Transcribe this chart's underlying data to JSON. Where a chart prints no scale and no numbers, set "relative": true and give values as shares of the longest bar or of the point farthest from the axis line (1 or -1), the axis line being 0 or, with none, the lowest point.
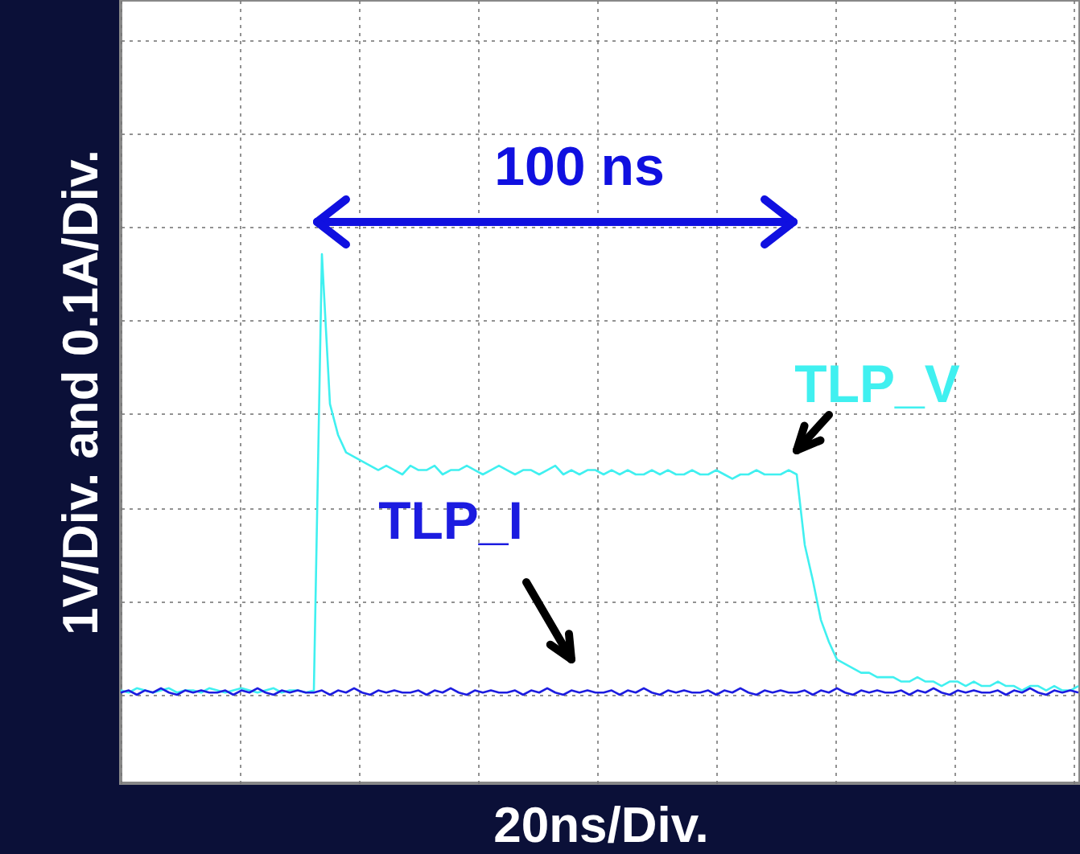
{
  "chart_data": {
    "type": "line",
    "relative": true,
    "grid": true,
    "xlabel": "20ns/Div.",
    "ylabel": "1V/Div. and 0.1A/Div.",
    "annotations": [
      "100 ns"
    ],
    "categories": [
      null,
      null,
      null,
      null,
      null,
      null,
      null,
      null,
      null,
      null,
      null,
      null,
      null,
      null,
      null,
      null,
      null,
      null,
      null,
      null,
      null,
      null,
      null,
      null,
      null,
      null,
      null,
      null,
      null,
      null,
      null,
      null,
      null,
      null,
      null,
      null,
      null,
      null,
      null,
      null,
      null,
      null,
      null,
      null,
      null,
      null,
      null,
      null,
      null,
      null,
      null,
      null,
      null,
      null,
      null,
      null,
      null,
      null,
      null,
      null,
      null,
      null,
      null,
      null,
      null,
      null,
      null,
      null,
      null,
      null,
      null,
      null,
      null,
      null,
      null,
      null,
      null,
      null,
      null,
      null,
      null,
      null,
      null,
      null,
      null,
      null,
      null,
      null,
      null,
      null,
      null,
      null,
      null,
      null,
      null,
      null,
      null,
      null,
      null,
      null,
      null,
      null,
      null,
      null,
      null,
      null,
      null,
      null,
      null,
      null,
      null,
      null,
      null,
      null,
      null,
      null,
      null,
      null,
      null,
      null
    ],
    "series": [
      {
        "name": "TLP_V",
        "color": "#40f0f0",
        "values": [
          0.01,
          0.005,
          0.015,
          0.01,
          0.005,
          0.01,
          0.015,
          0.005,
          0.01,
          0.01,
          0.005,
          0.015,
          0.01,
          0.005,
          0.01,
          0.015,
          0.01,
          0.005,
          0.01,
          0.015,
          0.005,
          0.01,
          0.01,
          0.005,
          0.01,
          1.0,
          0.66,
          0.59,
          0.55,
          0.54,
          0.53,
          0.52,
          0.51,
          0.52,
          0.51,
          0.5,
          0.52,
          0.51,
          0.51,
          0.52,
          0.5,
          0.51,
          0.51,
          0.52,
          0.51,
          0.5,
          0.51,
          0.52,
          0.51,
          0.5,
          0.51,
          0.51,
          0.5,
          0.51,
          0.52,
          0.5,
          0.51,
          0.5,
          0.51,
          0.51,
          0.5,
          0.51,
          0.5,
          0.51,
          0.5,
          0.5,
          0.51,
          0.5,
          0.51,
          0.5,
          0.5,
          0.51,
          0.5,
          0.5,
          0.51,
          0.5,
          0.49,
          0.5,
          0.5,
          0.51,
          0.5,
          0.5,
          0.5,
          0.51,
          0.5,
          0.34,
          0.26,
          0.17,
          0.12,
          0.08,
          0.07,
          0.06,
          0.05,
          0.05,
          0.04,
          0.04,
          0.04,
          0.03,
          0.03,
          0.04,
          0.03,
          0.03,
          0.02,
          0.03,
          0.03,
          0.02,
          0.03,
          0.02,
          0.02,
          0.03,
          0.02,
          0.02,
          0.01,
          0.02,
          0.02,
          0.01,
          0.02,
          0.01,
          0.01,
          0.02
        ]
      },
      {
        "name": "TLP_I",
        "color": "#1c1ce0",
        "values": [
          0.005,
          0.01,
          0,
          0.01,
          0.005,
          0.015,
          0.005,
          0,
          0.01,
          0.005,
          0.01,
          0.005,
          0.005,
          0.01,
          0,
          0.01,
          0.005,
          0.015,
          0.005,
          0,
          0.01,
          0.005,
          0.01,
          0.005,
          0.005,
          0.01,
          0,
          0.01,
          0.005,
          0.015,
          0.005,
          0,
          0.01,
          0.005,
          0.01,
          0.005,
          0.005,
          0.01,
          0,
          0.01,
          0.005,
          0.015,
          0.005,
          0,
          0.01,
          0.005,
          0.01,
          0.005,
          0.005,
          0.01,
          0,
          0.01,
          0.005,
          0.015,
          0.005,
          0,
          0.01,
          0.005,
          0.01,
          0.005,
          0.005,
          0.01,
          0,
          0.01,
          0.005,
          0.015,
          0.005,
          0,
          0.01,
          0.005,
          0.01,
          0.005,
          0.005,
          0.01,
          0,
          0.01,
          0.005,
          0.015,
          0.005,
          0,
          0.01,
          0.005,
          0.01,
          0.005,
          0.005,
          0.01,
          0,
          0.01,
          0.005,
          0.015,
          0.005,
          0,
          0.01,
          0.005,
          0.01,
          0.005,
          0.005,
          0.01,
          0,
          0.01,
          0.005,
          0.015,
          0.005,
          0,
          0.01,
          0.005,
          0.01,
          0.005,
          0.005,
          0.01,
          0,
          0.01,
          0.005,
          0.015,
          0.005,
          0,
          0.01,
          0.005,
          0.01,
          0.005
        ]
      }
    ]
  }
}
